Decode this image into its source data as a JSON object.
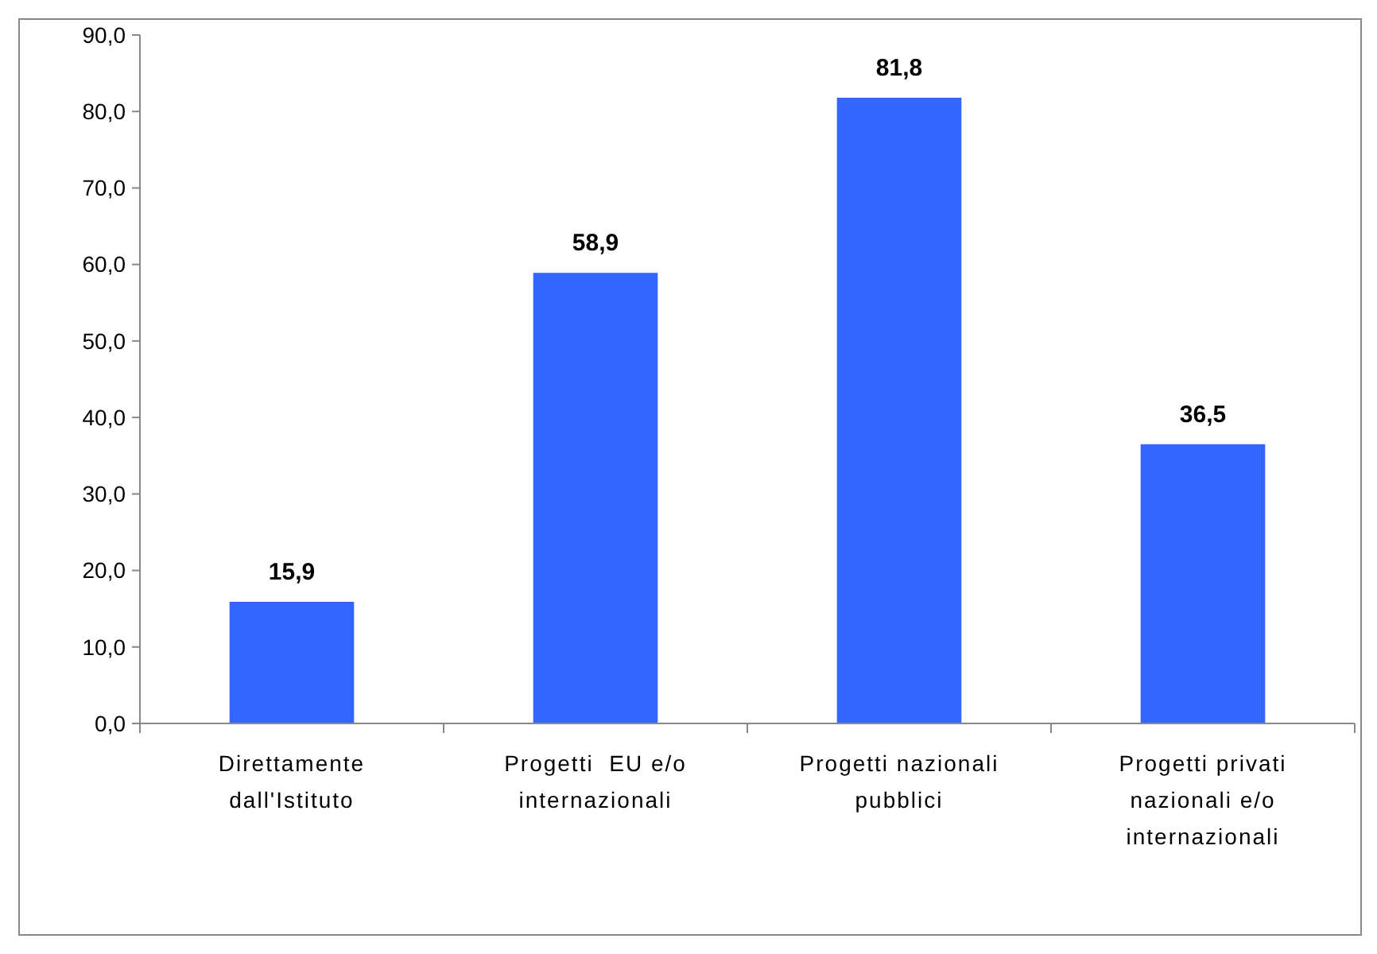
{
  "chart_data": {
    "type": "bar",
    "categories": [
      "Direttamente dall'Istituto",
      "Progetti  EU e/o internazionali",
      "Progetti nazionali pubblici",
      "Progetti privati nazionali e/o internazionali"
    ],
    "values": [
      15.9,
      58.9,
      81.8,
      36.5
    ],
    "value_labels": [
      "15,9",
      "58,9",
      "81,8",
      "36,5"
    ],
    "color": "#3366ff",
    "ylim": [
      0,
      90
    ],
    "yticks": [
      {
        "value": 0,
        "label": "0,0"
      },
      {
        "value": 10,
        "label": "10,0"
      },
      {
        "value": 20,
        "label": "20,0"
      },
      {
        "value": 30,
        "label": "30,0"
      },
      {
        "value": 40,
        "label": "40,0"
      },
      {
        "value": 50,
        "label": "50,0"
      },
      {
        "value": 60,
        "label": "60,0"
      },
      {
        "value": 70,
        "label": "70,0"
      },
      {
        "value": 80,
        "label": "80,0"
      },
      {
        "value": 90,
        "label": "90,0"
      }
    ],
    "grid": false
  }
}
